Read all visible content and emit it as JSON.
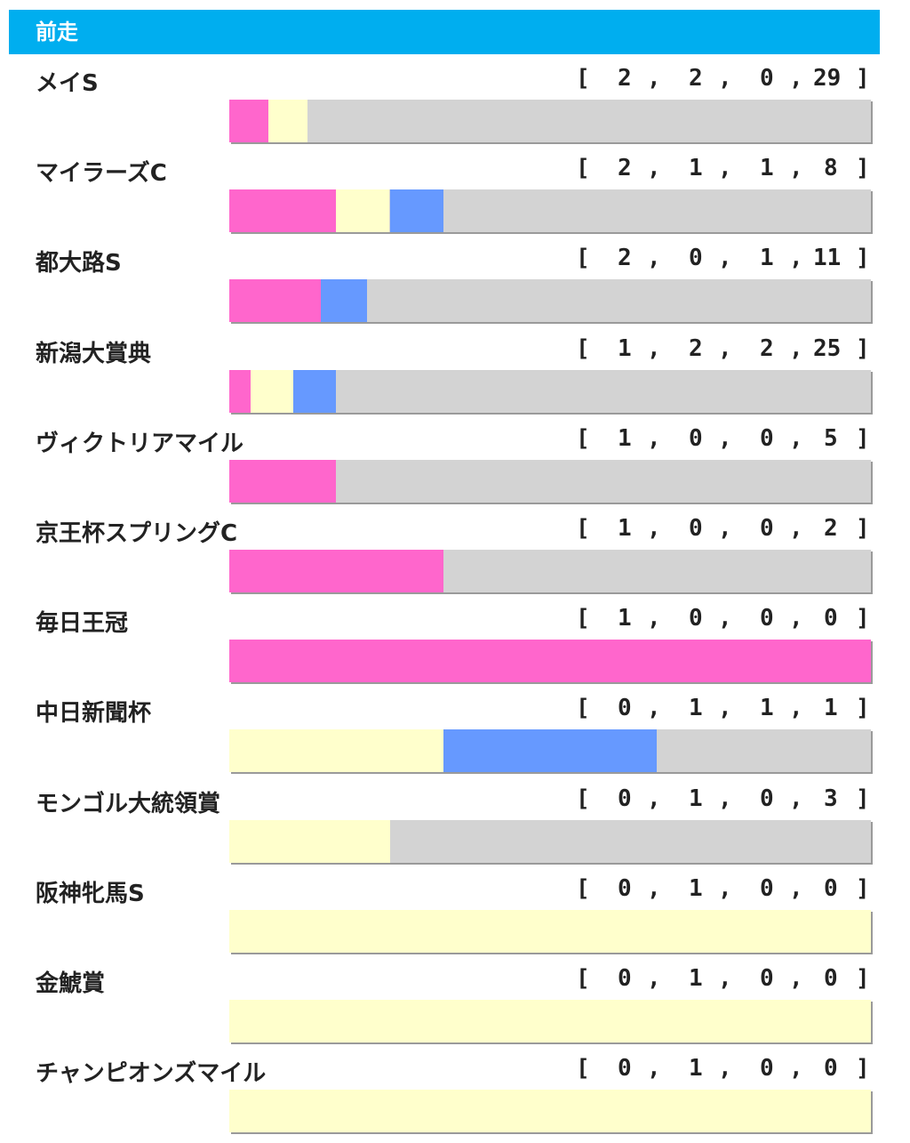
{
  "header": {
    "title": "前走"
  },
  "colors": {
    "win": "#FF66CC",
    "second": "#FFFFCC",
    "third": "#6699FF",
    "other": "#D3D3D3",
    "header": "#00AEEF"
  },
  "chart_data": {
    "type": "bar",
    "stacked": true,
    "orientation": "horizontal",
    "categories": [
      "メイS",
      "マイラーズC",
      "都大路S",
      "新潟大賞典",
      "ヴィクトリアマイル",
      "京王杯スプリングC",
      "毎日王冠",
      "中日新聞杯",
      "モンゴル大統領賞",
      "阪神牝馬S",
      "金鯱賞",
      "チャンピオンズマイル"
    ],
    "series": [
      {
        "values": [
          2,
          2,
          2,
          1,
          1,
          1,
          1,
          0,
          0,
          0,
          0,
          0
        ]
      },
      {
        "values": [
          2,
          1,
          0,
          2,
          0,
          0,
          0,
          1,
          1,
          1,
          1,
          1
        ]
      },
      {
        "values": [
          0,
          1,
          1,
          2,
          0,
          0,
          0,
          1,
          0,
          0,
          0,
          0
        ]
      },
      {
        "values": [
          29,
          8,
          11,
          25,
          5,
          2,
          0,
          1,
          3,
          0,
          0,
          0
        ]
      }
    ]
  }
}
